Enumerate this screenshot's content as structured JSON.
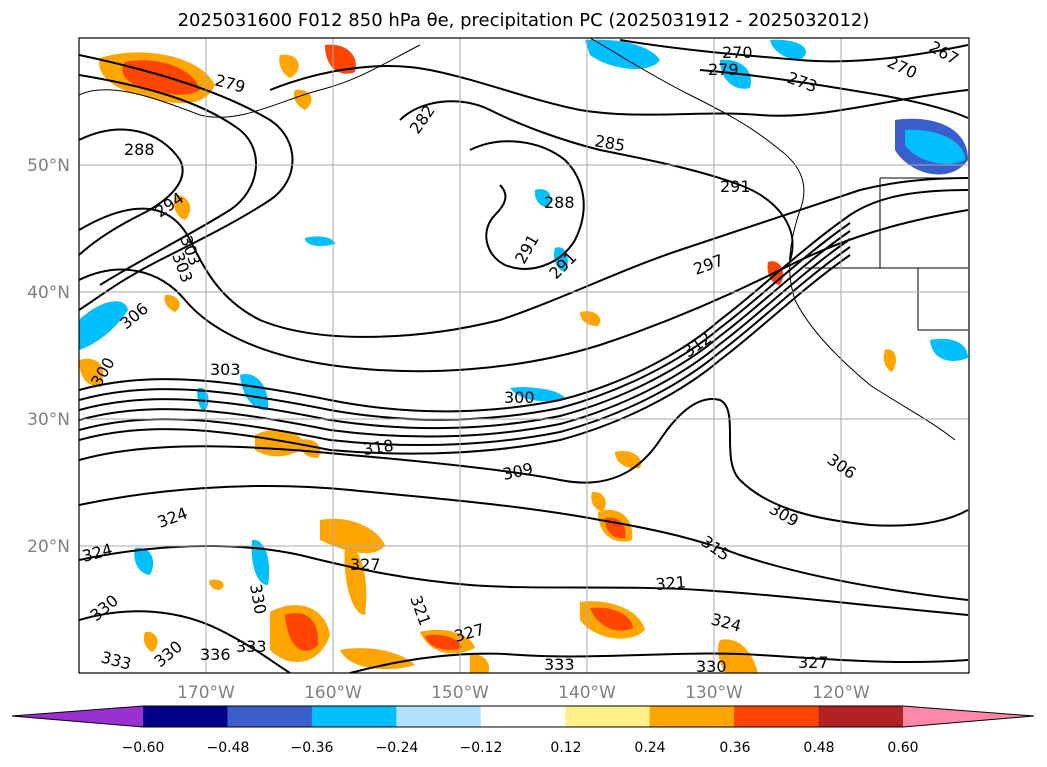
{
  "title": "2025031600 F012 850 hPa θe, precipitation PC (2025031912 - 2025032012)",
  "map": {
    "lat_labels": [
      "50°N",
      "40°N",
      "30°N",
      "20°N"
    ],
    "lon_labels": [
      "170°W",
      "160°W",
      "150°W",
      "140°W",
      "130°W",
      "120°W"
    ],
    "gridline_color": "#aaaaaa",
    "tick_label_color": "#808080",
    "contour_labels": [
      "270",
      "270",
      "279",
      "279",
      "273",
      "267",
      "282",
      "285",
      "288",
      "288",
      "291",
      "291",
      "291",
      "294",
      "297",
      "303",
      "303",
      "306",
      "300",
      "300",
      "303",
      "312",
      "318",
      "309",
      "309",
      "306",
      "324",
      "324",
      "330",
      "330",
      "333",
      "336",
      "330",
      "333",
      "327",
      "321",
      "327",
      "315",
      "321",
      "324",
      "330",
      "327",
      "333"
    ]
  },
  "colorbar": {
    "tick_labels": [
      "−0.60",
      "−0.48",
      "−0.36",
      "−0.24",
      "−0.12",
      "0.12",
      "0.24",
      "0.36",
      "0.48",
      "0.60"
    ],
    "colors": [
      "#9b30d0",
      "#00008b",
      "#3a5fcd",
      "#00bfff",
      "#b0e2ff",
      "#ffffff",
      "#fff08a",
      "#ffa500",
      "#ff4500",
      "#b22222",
      "#ff88aa"
    ]
  }
}
